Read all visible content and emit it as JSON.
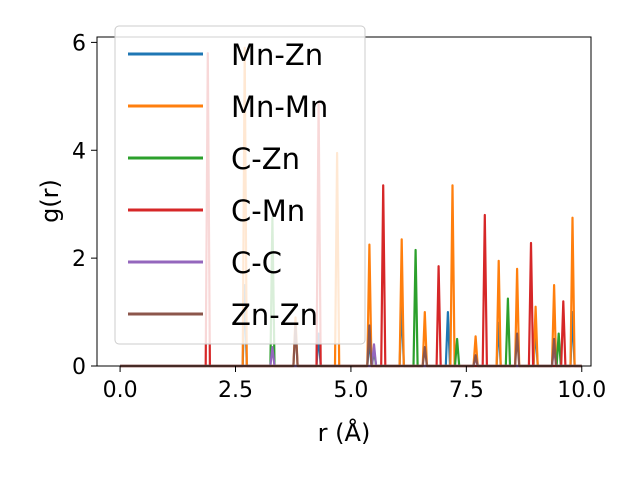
{
  "chart_data": {
    "type": "line",
    "xlabel": "r (Å)",
    "ylabel": "g(r)",
    "xlim": [
      -0.5,
      10.2
    ],
    "ylim": [
      0,
      6.1
    ],
    "xticks": [
      "0.0",
      "2.5",
      "5.0",
      "7.5",
      "10.0"
    ],
    "xtick_values": [
      0,
      2.5,
      5,
      7.5,
      10
    ],
    "yticks": [
      "0",
      "2",
      "4",
      "6"
    ],
    "ytick_values": [
      0,
      2,
      4,
      6
    ],
    "grid": false,
    "legend_position": "top-left",
    "series": [
      {
        "name": "Mn-Zn",
        "color": "#1f77b4",
        "peaks": [
          [
            2.7,
            1.5
          ],
          [
            4.3,
            0.6
          ],
          [
            5.4,
            0.5
          ],
          [
            6.1,
            1.2
          ],
          [
            7.1,
            1.0
          ],
          [
            8.2,
            0.8
          ],
          [
            9.0,
            0.7
          ],
          [
            9.8,
            1.0
          ]
        ]
      },
      {
        "name": "Mn-Mn",
        "color": "#ff7f0e",
        "peaks": [
          [
            2.7,
            5.9
          ],
          [
            3.8,
            0.9
          ],
          [
            4.7,
            3.95
          ],
          [
            5.4,
            2.25
          ],
          [
            6.1,
            2.35
          ],
          [
            6.6,
            1.0
          ],
          [
            7.2,
            3.35
          ],
          [
            7.7,
            0.55
          ],
          [
            8.2,
            1.95
          ],
          [
            8.6,
            1.8
          ],
          [
            9.0,
            1.1
          ],
          [
            9.4,
            1.5
          ],
          [
            9.8,
            2.75
          ]
        ]
      },
      {
        "name": "C-Zn",
        "color": "#2ca02c",
        "peaks": [
          [
            3.3,
            2.75
          ],
          [
            5.5,
            0.3
          ],
          [
            6.4,
            2.15
          ],
          [
            7.3,
            0.5
          ],
          [
            8.4,
            1.25
          ],
          [
            9.5,
            0.6
          ]
        ]
      },
      {
        "name": "C-Mn",
        "color": "#d62728",
        "peaks": [
          [
            1.9,
            5.8
          ],
          [
            4.3,
            4.9
          ],
          [
            5.7,
            3.35
          ],
          [
            6.9,
            1.85
          ],
          [
            7.9,
            2.8
          ],
          [
            8.9,
            2.28
          ],
          [
            9.6,
            1.2
          ]
        ]
      },
      {
        "name": "C-C",
        "color": "#9467bd",
        "peaks": [
          [
            3.3,
            0.35
          ],
          [
            5.5,
            0.4
          ],
          [
            7.7,
            0.15
          ],
          [
            9.4,
            0.35
          ]
        ]
      },
      {
        "name": "Zn-Zn",
        "color": "#8c564b",
        "peaks": [
          [
            3.8,
            0.75
          ],
          [
            5.4,
            0.75
          ],
          [
            6.6,
            0.35
          ],
          [
            7.7,
            0.2
          ],
          [
            8.6,
            0.6
          ],
          [
            9.4,
            0.5
          ]
        ]
      }
    ]
  }
}
